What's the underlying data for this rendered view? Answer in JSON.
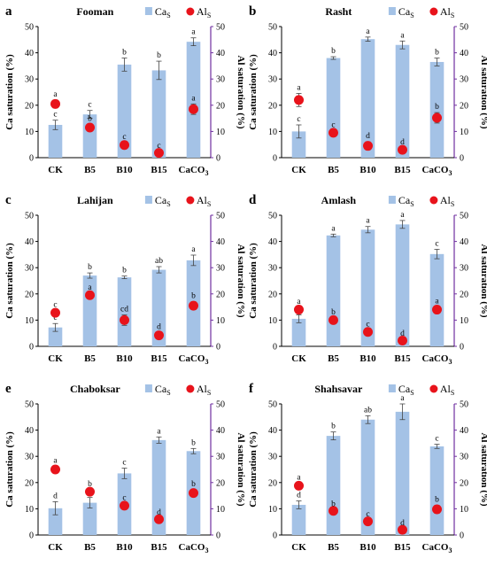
{
  "figure": {
    "legend": {
      "ca_label": "Ca",
      "al_label": "Al",
      "subscript": "S"
    },
    "categories": [
      "CK",
      "B5",
      "B10",
      "B15",
      "CaCO"
    ],
    "category_subscript": "3",
    "colors": {
      "bar": "#a4c2e6",
      "dot": "#e8131b",
      "axis_left": "#000000",
      "axis_right": "#7030a0",
      "error": "#444444"
    }
  },
  "chart_data": [
    {
      "panel": "a",
      "title": "Fooman",
      "type": "bar",
      "ylabel_left": "Ca saturation (%)",
      "ylabel_right": "Al saturation (%)",
      "ylim_left": [
        0,
        50
      ],
      "ylim_right": [
        0,
        50
      ],
      "ticks_left": [
        "0",
        "10",
        "20",
        "30",
        "40",
        "50"
      ],
      "ticks_right": [
        "0",
        "10",
        "20",
        "30",
        "40",
        "50"
      ],
      "categories": [
        "CK",
        "B5",
        "B10",
        "B15",
        "CaCO3"
      ],
      "series": [
        {
          "name": "CaS",
          "type": "bar",
          "values": [
            12.5,
            16.5,
            35.5,
            33.3,
            44.2
          ],
          "errors": [
            1.8,
            1.5,
            2.5,
            3.5,
            1.5
          ],
          "letters": [
            "c",
            "c",
            "b",
            "b",
            "a"
          ]
        },
        {
          "name": "AlS",
          "type": "scatter",
          "values": [
            20.5,
            11.5,
            4.8,
            1.8,
            18.5
          ],
          "errors": [
            1.5,
            1.2,
            1.0,
            0.5,
            2.0
          ],
          "letters": [
            "a",
            "b",
            "c",
            "c",
            "a"
          ]
        }
      ]
    },
    {
      "panel": "b",
      "title": "Rasht",
      "type": "bar",
      "ylabel_left": "Ca saturation (%)",
      "ylabel_right": "Al saturation (%)",
      "ylim_left": [
        0,
        50
      ],
      "ylim_right": [
        0,
        50
      ],
      "ticks_left": [
        "0",
        "10",
        "20",
        "30",
        "40",
        "50"
      ],
      "ticks_right": [
        "0",
        "10",
        "20",
        "30",
        "40",
        "50"
      ],
      "categories": [
        "CK",
        "B5",
        "B10",
        "B15",
        "CaCO3"
      ],
      "series": [
        {
          "name": "CaS",
          "type": "bar",
          "values": [
            10.0,
            38.0,
            45.2,
            43.0,
            36.5
          ],
          "errors": [
            2.5,
            0.5,
            0.8,
            1.5,
            1.5
          ],
          "letters": [
            "c",
            "b",
            "a",
            "a",
            "b"
          ]
        },
        {
          "name": "AlS",
          "type": "scatter",
          "values": [
            22.0,
            9.5,
            4.5,
            3.0,
            15.2
          ],
          "errors": [
            2.5,
            0.8,
            1.5,
            0.8,
            2.0
          ],
          "letters": [
            "a",
            "c",
            "d",
            "d",
            "b"
          ]
        }
      ]
    },
    {
      "panel": "c",
      "title": "Lahijan",
      "type": "bar",
      "ylabel_left": "Ca saturation (%)",
      "ylabel_right": "Al saturation (%)",
      "ylim_left": [
        0,
        50
      ],
      "ylim_right": [
        0,
        50
      ],
      "ticks_left": [
        "0",
        "10",
        "20",
        "30",
        "40",
        "50"
      ],
      "ticks_right": [
        "0",
        "10",
        "20",
        "30",
        "40",
        "50"
      ],
      "categories": [
        "CK",
        "B5",
        "B10",
        "B15",
        "CaCO3"
      ],
      "series": [
        {
          "name": "CaS",
          "type": "bar",
          "values": [
            7.2,
            27.0,
            26.3,
            29.2,
            32.8
          ],
          "errors": [
            1.5,
            1.0,
            0.5,
            1.2,
            2.0
          ],
          "letters": [
            "c",
            "b",
            "b",
            "ab",
            "a"
          ]
        },
        {
          "name": "AlS",
          "type": "scatter",
          "values": [
            12.8,
            19.5,
            10.0,
            4.2,
            15.5
          ],
          "errors": [
            0.8,
            0.8,
            2.0,
            1.0,
            1.5
          ],
          "letters": [
            "c",
            "a",
            "cd",
            "d",
            "b"
          ]
        }
      ]
    },
    {
      "panel": "d",
      "title": "Amlash",
      "type": "bar",
      "ylabel_left": "Ca saturation (%)",
      "ylabel_right": "Al saturation (%)",
      "ylim_left": [
        0,
        50
      ],
      "ylim_right": [
        0,
        50
      ],
      "ticks_left": [
        "0",
        "10",
        "20",
        "30",
        "40",
        "50"
      ],
      "ticks_right": [
        "0",
        "10",
        "20",
        "30",
        "40",
        "50"
      ],
      "categories": [
        "CK",
        "B5",
        "B10",
        "B15",
        "CaCO3"
      ],
      "series": [
        {
          "name": "CaS",
          "type": "bar",
          "values": [
            10.5,
            42.3,
            44.5,
            46.5,
            35.2
          ],
          "errors": [
            1.5,
            0.5,
            1.2,
            1.5,
            1.8
          ],
          "letters": [
            "d",
            "a",
            "a",
            "a",
            "c"
          ]
        },
        {
          "name": "AlS",
          "type": "scatter",
          "values": [
            14.0,
            10.0,
            5.5,
            2.2,
            14.0
          ],
          "errors": [
            0.8,
            0.8,
            0.8,
            0.5,
            1.0
          ],
          "letters": [
            "a",
            "b",
            "c",
            "d",
            "a"
          ]
        }
      ]
    },
    {
      "panel": "e",
      "title": "Chaboksar",
      "type": "bar",
      "ylabel_left": "Ca saturation (%)",
      "ylabel_right": "Al saturation (%)",
      "ylim_left": [
        0,
        50
      ],
      "ylim_right": [
        0,
        50
      ],
      "ticks_left": [
        "0",
        "10",
        "20",
        "30",
        "40",
        "50"
      ],
      "ticks_right": [
        "0",
        "10",
        "20",
        "30",
        "40",
        "50"
      ],
      "categories": [
        "CK",
        "B5",
        "B10",
        "B15",
        "CaCO3"
      ],
      "series": [
        {
          "name": "CaS",
          "type": "bar",
          "values": [
            10.2,
            12.3,
            23.5,
            36.2,
            32.0
          ],
          "errors": [
            2.5,
            2.0,
            2.0,
            1.2,
            1.0
          ],
          "letters": [
            "d",
            "d",
            "c",
            "a",
            "b"
          ]
        },
        {
          "name": "AlS",
          "type": "scatter",
          "values": [
            25.0,
            16.5,
            11.2,
            6.0,
            16.0
          ],
          "errors": [
            1.2,
            0.8,
            0.8,
            0.5,
            1.2
          ],
          "letters": [
            "a",
            "b",
            "c",
            "d",
            "b"
          ]
        }
      ]
    },
    {
      "panel": "f",
      "title": "Shahsavar",
      "type": "bar",
      "ylabel_left": "Ca saturation (%)",
      "ylabel_right": "Al saturation (%)",
      "ylim_left": [
        0,
        50
      ],
      "ylim_right": [
        0,
        50
      ],
      "ticks_left": [
        "0",
        "10",
        "20",
        "30",
        "40",
        "50"
      ],
      "ticks_right": [
        "0",
        "10",
        "20",
        "30",
        "40",
        "50"
      ],
      "categories": [
        "CK",
        "B5",
        "B10",
        "B15",
        "CaCO3"
      ],
      "series": [
        {
          "name": "CaS",
          "type": "bar",
          "values": [
            11.5,
            37.8,
            44.0,
            47.0,
            33.8
          ],
          "errors": [
            1.5,
            1.5,
            1.5,
            3.0,
            0.8
          ],
          "letters": [
            "d",
            "b",
            "ab",
            "a",
            "c"
          ]
        },
        {
          "name": "AlS",
          "type": "scatter",
          "values": [
            18.8,
            9.2,
            5.2,
            2.0,
            9.8
          ],
          "errors": [
            1.0,
            0.5,
            0.5,
            0.3,
            1.5
          ],
          "letters": [
            "a",
            "b",
            "c",
            "d",
            "b"
          ]
        }
      ]
    }
  ]
}
